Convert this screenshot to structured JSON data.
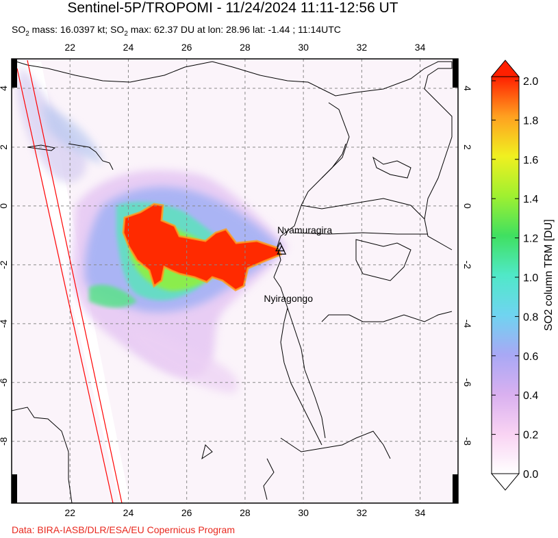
{
  "title": "Sentinel-5P/TROPOMI - 11/24/2024 11:11-12:56 UT",
  "subtitle": {
    "prefix": "SO",
    "mass_sub": "2",
    "mass_text": " mass: 16.0397 kt; SO",
    "max_sub": "2",
    "max_text": " max: 62.37 DU at lon: 28.96 lat: -1.44 ; 11:14UTC"
  },
  "credit": "Data: BIRA-IASB/DLR/ESA/EU Copernicus Program",
  "map": {
    "lon_range": [
      20,
      35.3
    ],
    "lat_range": [
      -10.1,
      5.0
    ],
    "lon_ticks": [
      "22",
      "24",
      "26",
      "28",
      "30",
      "32",
      "34"
    ],
    "lat_ticks": [
      "4",
      "2",
      "0",
      "-2",
      "-4",
      "-6",
      "-8"
    ],
    "lon_values": [
      22,
      24,
      26,
      28,
      30,
      32,
      34
    ],
    "lat_values": [
      4,
      2,
      0,
      -2,
      -4,
      -6,
      -8
    ],
    "colors": {
      "frame": "#000000",
      "grid": "#888888",
      "coast": "#000000",
      "orbit_edge": "#ff0000"
    },
    "volcanoes": [
      {
        "name": "Nyamuragira",
        "lon": 29.2,
        "lat": -1.41
      },
      {
        "name": "Nyiragongo",
        "lon": 29.25,
        "lat": -1.52
      }
    ]
  },
  "colorbar": {
    "label": "SO2 column TRM [DU]",
    "ticks": [
      "2.0",
      "1.8",
      "1.6",
      "1.4",
      "1.2",
      "1.0",
      "0.8",
      "0.6",
      "0.4",
      "0.2",
      "0.0"
    ],
    "range": [
      0.0,
      2.0
    ],
    "stops": [
      "#ffffff",
      "#f9d3f3",
      "#d9b0f0",
      "#a8a8f5",
      "#6fd4f0",
      "#50e8c8",
      "#40e060",
      "#a0f030",
      "#f0f020",
      "#ffa020",
      "#ff2000"
    ]
  }
}
